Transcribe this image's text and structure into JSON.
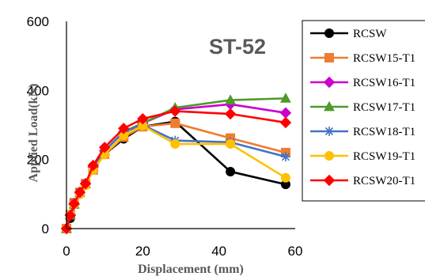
{
  "chart_data": {
    "type": "line",
    "title": "ST-52",
    "xlabel": "Displacement (mm)",
    "ylabel": "Applied Load(kN)",
    "xlim": [
      0,
      60
    ],
    "ylim": [
      0,
      600
    ],
    "xticks": [
      0,
      20,
      40,
      60
    ],
    "yticks": [
      0,
      200,
      400,
      600
    ],
    "grid": false,
    "legend_position": "right",
    "series": [
      {
        "name": "RCSW",
        "color": "#000000",
        "marker": "circle",
        "x": [
          0,
          1,
          2,
          3.5,
          5,
          7,
          10,
          15,
          20,
          28.5,
          43,
          57.5
        ],
        "y": [
          0,
          30,
          70,
          100,
          130,
          170,
          215,
          260,
          295,
          310,
          165,
          128
        ]
      },
      {
        "name": "RCSW15-T1",
        "color": "#ED7D31",
        "marker": "square",
        "x": [
          0,
          1,
          2,
          3.5,
          5,
          7,
          10,
          15,
          20,
          28.5,
          43,
          57.5
        ],
        "y": [
          0,
          40,
          75,
          105,
          130,
          170,
          215,
          265,
          295,
          305,
          262,
          220
        ]
      },
      {
        "name": "RCSW16-T1",
        "color": "#CC00CC",
        "marker": "diamond",
        "x": [
          0,
          1,
          2,
          3.5,
          5,
          7,
          10,
          15,
          20,
          28.5,
          43,
          57.5
        ],
        "y": [
          0,
          40,
          70,
          105,
          130,
          178,
          225,
          280,
          305,
          345,
          360,
          335
        ]
      },
      {
        "name": "RCSW17-T1",
        "color": "#4E9A2A",
        "marker": "triangle",
        "x": [
          0,
          1,
          2,
          3.5,
          5,
          7,
          10,
          15,
          20,
          28.5,
          43,
          57.5
        ],
        "y": [
          0,
          40,
          70,
          105,
          130,
          178,
          225,
          280,
          305,
          350,
          372,
          377
        ]
      },
      {
        "name": "RCSW18-T1",
        "color": "#4472C4",
        "marker": "star",
        "x": [
          0,
          1,
          2,
          3.5,
          5,
          7,
          10,
          15,
          20,
          28.5,
          43,
          57.5
        ],
        "y": [
          0,
          40,
          75,
          105,
          130,
          180,
          225,
          280,
          300,
          255,
          250,
          208
        ]
      },
      {
        "name": "RCSW19-T1",
        "color": "#FFC000",
        "marker": "circle",
        "x": [
          0,
          1,
          2,
          3.5,
          5,
          7,
          10,
          15,
          20,
          28.5,
          43,
          57.5
        ],
        "y": [
          0,
          40,
          70,
          100,
          125,
          170,
          215,
          270,
          298,
          245,
          245,
          147
        ]
      },
      {
        "name": "RCSW20-T1",
        "color": "#FF0000",
        "marker": "diamond",
        "x": [
          0,
          1,
          2,
          3.5,
          5,
          7,
          10,
          15,
          20,
          28.5,
          43,
          57.5
        ],
        "y": [
          0,
          38,
          72,
          105,
          130,
          183,
          235,
          290,
          318,
          340,
          332,
          307
        ]
      }
    ]
  }
}
